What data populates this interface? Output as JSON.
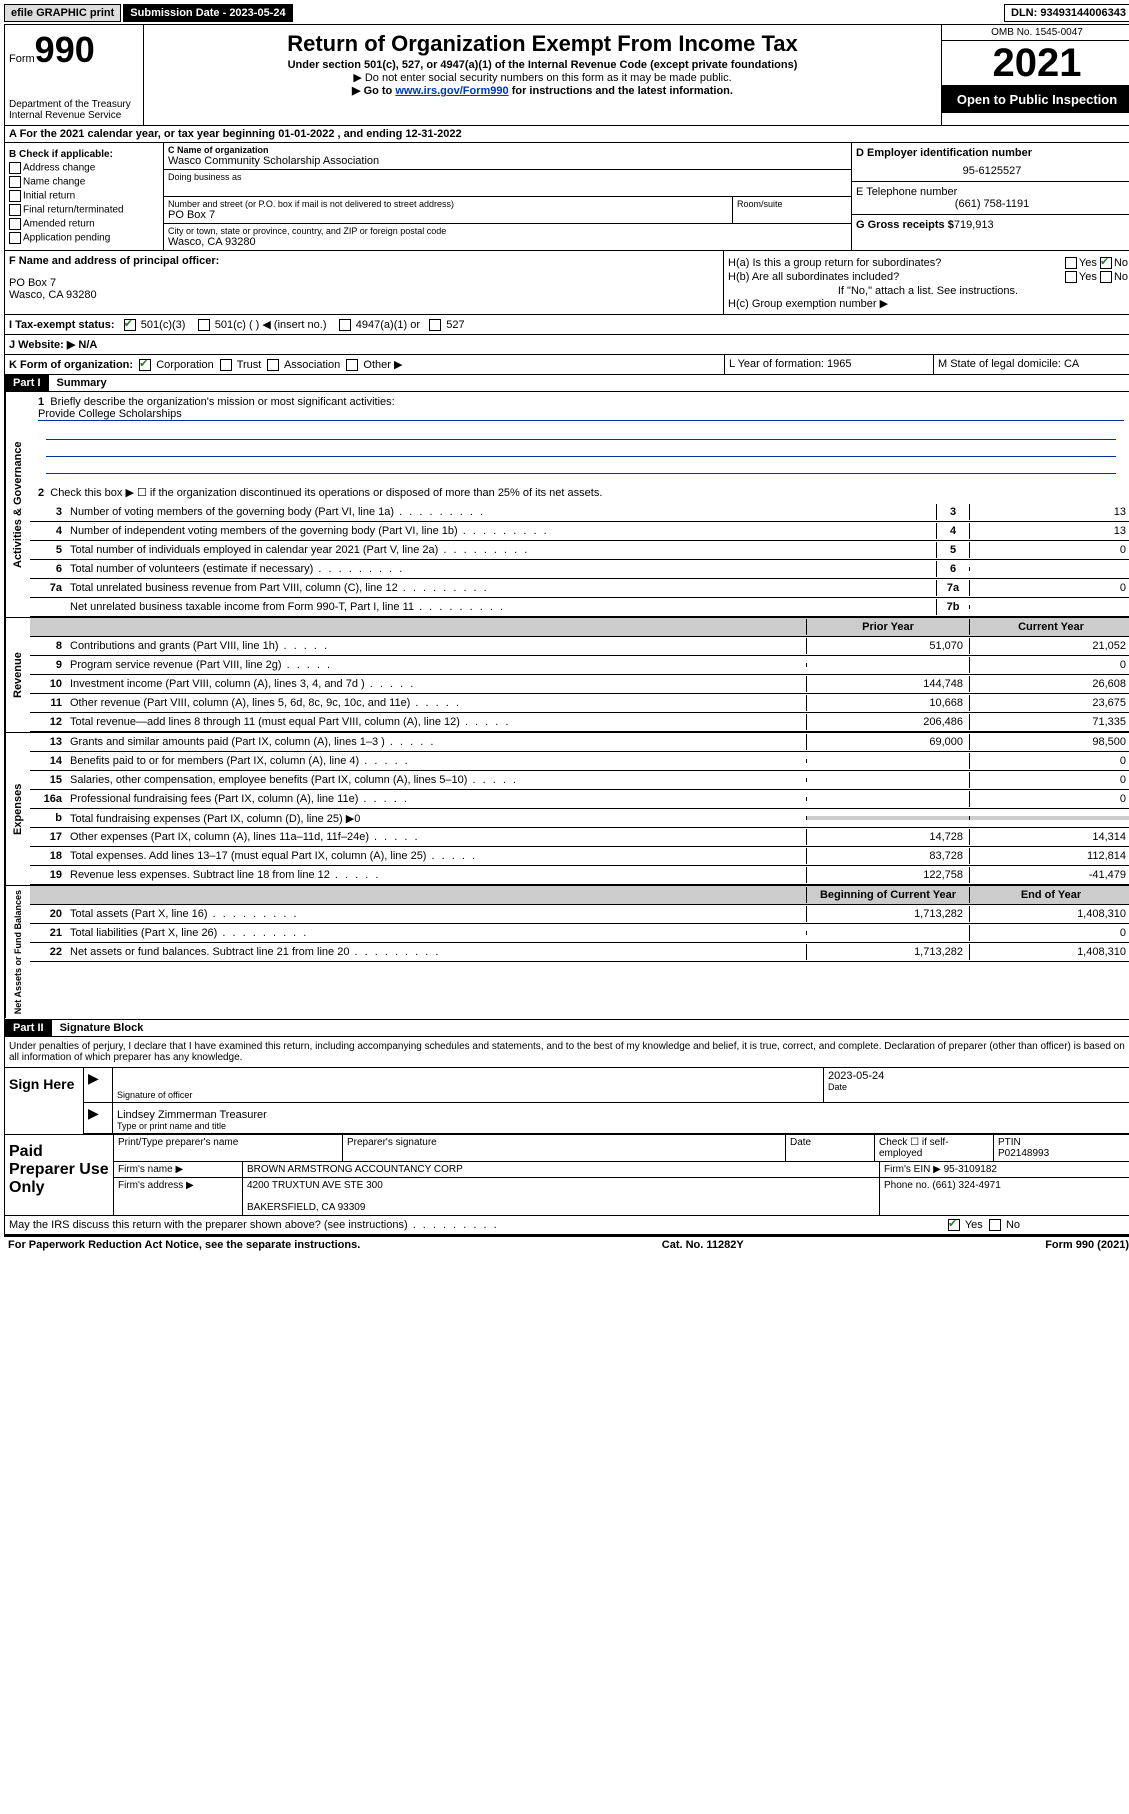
{
  "topbar": {
    "efile": "efile GRAPHIC print",
    "submission": "Submission Date - 2023-05-24",
    "dln": "DLN: 93493144006343"
  },
  "header": {
    "form_label": "Form",
    "form_num": "990",
    "dept": "Department of the Treasury",
    "irs": "Internal Revenue Service",
    "title": "Return of Organization Exempt From Income Tax",
    "sub": "Under section 501(c), 527, or 4947(a)(1) of the Internal Revenue Code (except private foundations)",
    "note1": "▶ Do not enter social security numbers on this form as it may be made public.",
    "note2_pre": "▶ Go to ",
    "note2_link": "www.irs.gov/Form990",
    "note2_post": " for instructions and the latest information.",
    "omb": "OMB No. 1545-0047",
    "year": "2021",
    "open": "Open to Public Inspection"
  },
  "rowA": "A For the 2021 calendar year, or tax year beginning 01-01-2022   , and ending 12-31-2022",
  "colB": {
    "label": "B Check if applicable:",
    "items": [
      "Address change",
      "Name change",
      "Initial return",
      "Final return/terminated",
      "Amended return",
      "Application pending"
    ]
  },
  "colC": {
    "name_label": "C Name of organization",
    "name": "Wasco Community Scholarship Association",
    "dba": "Doing business as",
    "addr_label": "Number and street (or P.O. box if mail is not delivered to street address)",
    "room": "Room/suite",
    "addr": "PO Box 7",
    "city_label": "City or town, state or province, country, and ZIP or foreign postal code",
    "city": "Wasco, CA  93280"
  },
  "colD": {
    "ein_label": "D Employer identification number",
    "ein": "95-6125527",
    "phone_label": "E Telephone number",
    "phone": "(661) 758-1191",
    "gross_label": "G Gross receipts $",
    "gross": "719,913"
  },
  "colF": {
    "label": "F  Name and address of principal officer:",
    "addr1": "PO Box 7",
    "addr2": "Wasco, CA  93280"
  },
  "colH": {
    "a": "H(a)  Is this a group return for subordinates?",
    "b": "H(b)  Are all subordinates included?",
    "b_note": "If \"No,\" attach a list. See instructions.",
    "c": "H(c)  Group exemption number ▶",
    "yes": "Yes",
    "no": "No"
  },
  "rowI": {
    "label": "I   Tax-exempt status:",
    "c3": "501(c)(3)",
    "c": "501(c) (  ) ◀ (insert no.)",
    "a1": "4947(a)(1) or",
    "527": "527"
  },
  "rowJ": "J   Website: ▶  N/A",
  "rowK": {
    "label": "K Form of organization:",
    "corp": "Corporation",
    "trust": "Trust",
    "assoc": "Association",
    "other": "Other ▶"
  },
  "rowL": "L Year of formation: 1965",
  "rowM": "M State of legal domicile: CA",
  "part1": {
    "header": "Part I",
    "title": "Summary",
    "q1": "Briefly describe the organization's mission or most significant activities:",
    "mission": "Provide College Scholarships",
    "q2": "Check this box ▶ ☐  if the organization discontinued its operations or disposed of more than 25% of its net assets.",
    "lines_gov": [
      {
        "n": "3",
        "d": "Number of voting members of the governing body (Part VI, line 1a)",
        "b": "3",
        "v": "13"
      },
      {
        "n": "4",
        "d": "Number of independent voting members of the governing body (Part VI, line 1b)",
        "b": "4",
        "v": "13"
      },
      {
        "n": "5",
        "d": "Total number of individuals employed in calendar year 2021 (Part V, line 2a)",
        "b": "5",
        "v": "0"
      },
      {
        "n": "6",
        "d": "Total number of volunteers (estimate if necessary)",
        "b": "6",
        "v": ""
      },
      {
        "n": "7a",
        "d": "Total unrelated business revenue from Part VIII, column (C), line 12",
        "b": "7a",
        "v": "0"
      },
      {
        "n": "",
        "d": "Net unrelated business taxable income from Form 990-T, Part I, line 11",
        "b": "7b",
        "v": ""
      }
    ],
    "col_prior": "Prior Year",
    "col_current": "Current Year",
    "lines_rev": [
      {
        "n": "8",
        "d": "Contributions and grants (Part VIII, line 1h)",
        "p": "51,070",
        "c": "21,052"
      },
      {
        "n": "9",
        "d": "Program service revenue (Part VIII, line 2g)",
        "p": "",
        "c": "0"
      },
      {
        "n": "10",
        "d": "Investment income (Part VIII, column (A), lines 3, 4, and 7d )",
        "p": "144,748",
        "c": "26,608"
      },
      {
        "n": "11",
        "d": "Other revenue (Part VIII, column (A), lines 5, 6d, 8c, 9c, 10c, and 11e)",
        "p": "10,668",
        "c": "23,675"
      },
      {
        "n": "12",
        "d": "Total revenue—add lines 8 through 11 (must equal Part VIII, column (A), line 12)",
        "p": "206,486",
        "c": "71,335"
      }
    ],
    "lines_exp": [
      {
        "n": "13",
        "d": "Grants and similar amounts paid (Part IX, column (A), lines 1–3 )",
        "p": "69,000",
        "c": "98,500"
      },
      {
        "n": "14",
        "d": "Benefits paid to or for members (Part IX, column (A), line 4)",
        "p": "",
        "c": "0"
      },
      {
        "n": "15",
        "d": "Salaries, other compensation, employee benefits (Part IX, column (A), lines 5–10)",
        "p": "",
        "c": "0"
      },
      {
        "n": "16a",
        "d": "Professional fundraising fees (Part IX, column (A), line 11e)",
        "p": "",
        "c": "0"
      },
      {
        "n": "b",
        "d": "Total fundraising expenses (Part IX, column (D), line 25) ▶0",
        "p": "",
        "c": "",
        "shaded": true
      },
      {
        "n": "17",
        "d": "Other expenses (Part IX, column (A), lines 11a–11d, 11f–24e)",
        "p": "14,728",
        "c": "14,314"
      },
      {
        "n": "18",
        "d": "Total expenses. Add lines 13–17 (must equal Part IX, column (A), line 25)",
        "p": "83,728",
        "c": "112,814"
      },
      {
        "n": "19",
        "d": "Revenue less expenses. Subtract line 18 from line 12",
        "p": "122,758",
        "c": "-41,479"
      }
    ],
    "col_begin": "Beginning of Current Year",
    "col_end": "End of Year",
    "lines_net": [
      {
        "n": "20",
        "d": "Total assets (Part X, line 16)",
        "p": "1,713,282",
        "c": "1,408,310"
      },
      {
        "n": "21",
        "d": "Total liabilities (Part X, line 26)",
        "p": "",
        "c": "0"
      },
      {
        "n": "22",
        "d": "Net assets or fund balances. Subtract line 21 from line 20",
        "p": "1,713,282",
        "c": "1,408,310"
      }
    ]
  },
  "part2": {
    "header": "Part II",
    "title": "Signature Block",
    "decl": "Under penalties of perjury, I declare that I have examined this return, including accompanying schedules and statements, and to the best of my knowledge and belief, it is true, correct, and complete. Declaration of preparer (other than officer) is based on all information of which preparer has any knowledge."
  },
  "sign": {
    "label": "Sign Here",
    "sig_officer": "Signature of officer",
    "date": "Date",
    "date_val": "2023-05-24",
    "name": "Lindsey Zimmerman Treasurer",
    "name_label": "Type or print name and title"
  },
  "paid": {
    "label": "Paid Preparer Use Only",
    "pt_name": "Print/Type preparer's name",
    "pt_sig": "Preparer's signature",
    "pt_date": "Date",
    "check_se": "Check ☐ if self-employed",
    "ptin_l": "PTIN",
    "ptin": "P02148993",
    "firm_name_l": "Firm's name      ▶",
    "firm_name": "BROWN ARMSTRONG ACCOUNTANCY CORP",
    "firm_ein_l": "Firm's EIN ▶",
    "firm_ein": "95-3109182",
    "firm_addr_l": "Firm's address ▶",
    "firm_addr1": "4200 TRUXTUN AVE STE 300",
    "firm_addr2": "BAKERSFIELD, CA  93309",
    "phone_l": "Phone no.",
    "phone": "(661) 324-4971"
  },
  "discuss": "May the IRS discuss this return with the preparer shown above? (see instructions)",
  "footer": {
    "left": "For Paperwork Reduction Act Notice, see the separate instructions.",
    "mid": "Cat. No. 11282Y",
    "right": "Form 990 (2021)"
  }
}
